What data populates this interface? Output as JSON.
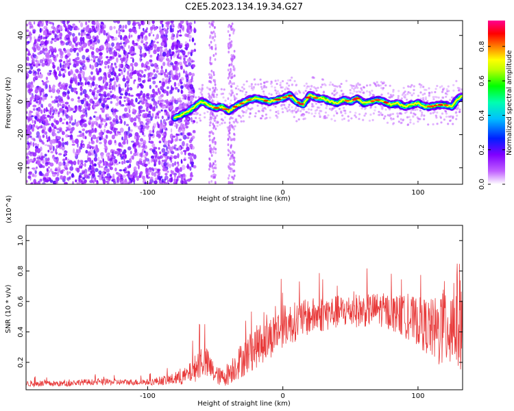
{
  "title": "C2E5.2023.134.19.34.G27",
  "chart_data": [
    {
      "type": "heatmap",
      "xlabel": "Height of straight line (km)",
      "ylabel": "Frequency (Hz)",
      "xlim": [
        -190,
        133
      ],
      "ylim": [
        -50,
        49
      ],
      "xticks": [
        -100,
        0,
        100
      ],
      "yticks": [
        -40,
        -20,
        0,
        20,
        40
      ],
      "colorbar": {
        "label": "Normalized spectral amplitude",
        "range": [
          0,
          0.95
        ],
        "ticks": [
          "0.0",
          "0.2",
          "0.4",
          "0.6",
          "0.8"
        ],
        "colormap": [
          "#ffffff",
          "#8000ff",
          "#0000ff",
          "#00ffff",
          "#00ff00",
          "#ffff00",
          "#ff8000",
          "#ff0000",
          "#ff00a0"
        ]
      },
      "ridge": {
        "x": [
          -80,
          -75,
          -70,
          -65,
          -60,
          -55,
          -50,
          -45,
          -40,
          -35,
          -30,
          -25,
          -20,
          -15,
          -10,
          -5,
          0,
          5,
          10,
          15,
          20,
          25,
          30,
          35,
          40,
          45,
          50,
          55,
          60,
          65,
          70,
          75,
          80,
          85,
          90,
          95,
          100,
          105,
          110,
          115,
          120,
          125,
          130,
          133
        ],
        "y": [
          -10,
          -8,
          -6,
          -3,
          0,
          -2,
          -4,
          -3,
          -6,
          -3,
          -1,
          1,
          2,
          1,
          0,
          1,
          2,
          4,
          0,
          -2,
          4,
          2,
          2,
          0,
          -1,
          1,
          0,
          2,
          -1,
          0,
          1,
          0,
          -2,
          -1,
          -3,
          -2,
          -1,
          -3,
          -3,
          -2,
          -2,
          -3,
          2,
          3
        ]
      }
    },
    {
      "type": "line",
      "xlabel": "Height of straight line (km)",
      "ylabel": "SNR (10 * v/v)",
      "multiplier": "(x10^4)",
      "xlim": [
        -190,
        133
      ],
      "ylim": [
        0.02,
        1.1
      ],
      "xticks": [
        -100,
        0,
        100
      ],
      "yticks": [
        "0.2",
        "0.4",
        "0.6",
        "0.8",
        "1.0"
      ],
      "series": [
        {
          "color": "#e83a3a",
          "x": [
            -190,
            -180,
            -170,
            -160,
            -150,
            -140,
            -130,
            -120,
            -110,
            -100,
            -90,
            -80,
            -75,
            -70,
            -65,
            -60,
            -55,
            -50,
            -45,
            -40,
            -35,
            -30,
            -25,
            -20,
            -15,
            -10,
            -5,
            0,
            10,
            20,
            30,
            40,
            50,
            60,
            70,
            80,
            90,
            100,
            110,
            115,
            120,
            125,
            130,
            133
          ],
          "mean": [
            0.06,
            0.06,
            0.06,
            0.06,
            0.07,
            0.07,
            0.07,
            0.07,
            0.07,
            0.07,
            0.08,
            0.09,
            0.1,
            0.12,
            0.16,
            0.22,
            0.18,
            0.12,
            0.1,
            0.13,
            0.18,
            0.22,
            0.26,
            0.3,
            0.33,
            0.36,
            0.4,
            0.44,
            0.47,
            0.5,
            0.52,
            0.53,
            0.54,
            0.54,
            0.55,
            0.53,
            0.5,
            0.47,
            0.42,
            0.4,
            0.45,
            0.48,
            0.5,
            0.5
          ],
          "spread": [
            0.02,
            0.02,
            0.02,
            0.02,
            0.02,
            0.02,
            0.02,
            0.02,
            0.02,
            0.02,
            0.03,
            0.04,
            0.05,
            0.06,
            0.09,
            0.12,
            0.1,
            0.06,
            0.06,
            0.08,
            0.1,
            0.12,
            0.13,
            0.14,
            0.14,
            0.14,
            0.14,
            0.14,
            0.13,
            0.12,
            0.12,
            0.11,
            0.11,
            0.11,
            0.11,
            0.12,
            0.14,
            0.16,
            0.2,
            0.24,
            0.3,
            0.36,
            0.36,
            0.36
          ]
        }
      ]
    }
  ]
}
